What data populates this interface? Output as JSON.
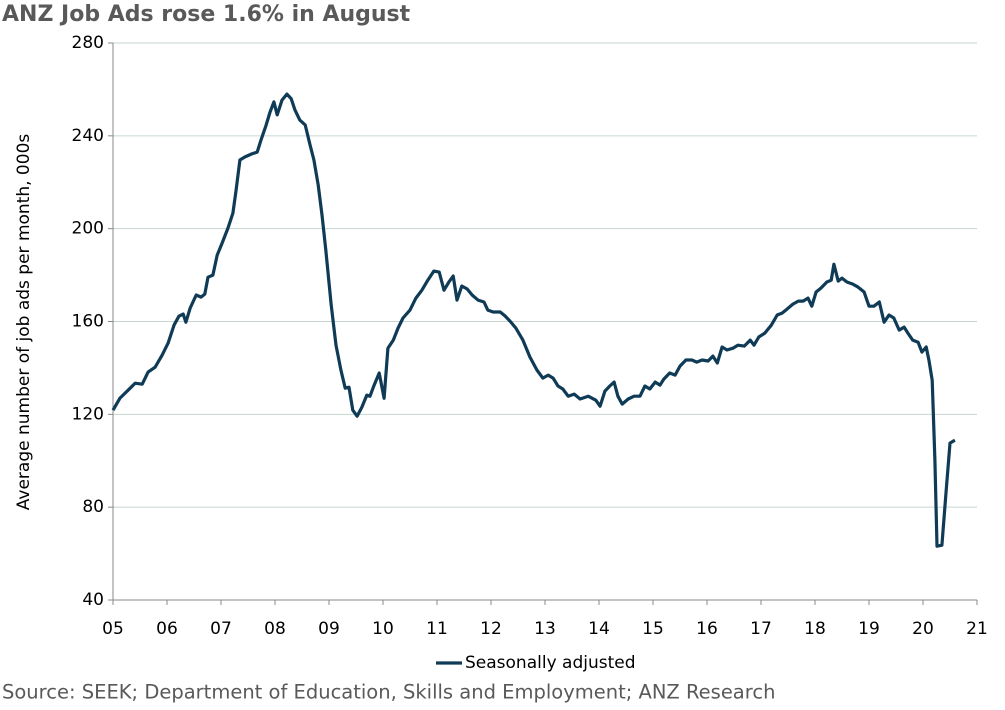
{
  "chart_data": {
    "type": "line",
    "title": "ANZ Job Ads rose 1.6% in August",
    "y_label": "Average number of job ads per month, 000s",
    "source": "Source: SEEK; Department of Education, Skills and Employment; ANZ Research",
    "xlim": [
      2005,
      2021
    ],
    "xticks": [
      {
        "value": 2005,
        "label": "05"
      },
      {
        "value": 2006,
        "label": "06"
      },
      {
        "value": 2007,
        "label": "07"
      },
      {
        "value": 2008,
        "label": "08"
      },
      {
        "value": 2009,
        "label": "09"
      },
      {
        "value": 2010,
        "label": "10"
      },
      {
        "value": 2011,
        "label": "11"
      },
      {
        "value": 2012,
        "label": "12"
      },
      {
        "value": 2013,
        "label": "13"
      },
      {
        "value": 2014,
        "label": "14"
      },
      {
        "value": 2015,
        "label": "15"
      },
      {
        "value": 2016,
        "label": "16"
      },
      {
        "value": 2017,
        "label": "17"
      },
      {
        "value": 2018,
        "label": "18"
      },
      {
        "value": 2019,
        "label": "19"
      },
      {
        "value": 2020,
        "label": "20"
      },
      {
        "value": 2021,
        "label": "21"
      }
    ],
    "ylim": [
      40,
      280
    ],
    "yticks": [
      40,
      80,
      120,
      160,
      200,
      240,
      280
    ],
    "grid": true,
    "legend": "bottom",
    "x": [
      2005.0,
      2005.13,
      2005.28,
      2005.41,
      2005.54,
      2005.65,
      2005.78,
      2005.91,
      2006.02,
      2006.13,
      2006.22,
      2006.3,
      2006.35,
      2006.43,
      2006.54,
      2006.63,
      2006.7,
      2006.76,
      2006.85,
      2006.93,
      2007.02,
      2007.13,
      2007.22,
      2007.28,
      2007.35,
      2007.44,
      2007.57,
      2007.67,
      2007.74,
      2007.83,
      2007.91,
      2007.98,
      2008.04,
      2008.13,
      2008.22,
      2008.3,
      2008.37,
      2008.46,
      2008.56,
      2008.65,
      2008.72,
      2008.8,
      2008.87,
      2008.94,
      2009.04,
      2009.13,
      2009.22,
      2009.3,
      2009.37,
      2009.44,
      2009.52,
      2009.61,
      2009.7,
      2009.76,
      2009.83,
      2009.93,
      2010.02,
      2010.09,
      2010.19,
      2010.28,
      2010.37,
      2010.5,
      2010.61,
      2010.72,
      2010.83,
      2010.94,
      2011.04,
      2011.13,
      2011.22,
      2011.3,
      2011.37,
      2011.46,
      2011.56,
      2011.65,
      2011.76,
      2011.87,
      2011.94,
      2012.04,
      2012.17,
      2012.26,
      2012.35,
      2012.46,
      2012.59,
      2012.72,
      2012.85,
      2012.96,
      2013.06,
      2013.15,
      2013.24,
      2013.33,
      2013.43,
      2013.54,
      2013.65,
      2013.8,
      2013.94,
      2014.02,
      2014.11,
      2014.2,
      2014.28,
      2014.35,
      2014.43,
      2014.54,
      2014.65,
      2014.76,
      2014.85,
      2014.94,
      2015.04,
      2015.13,
      2015.2,
      2015.31,
      2015.41,
      2015.5,
      2015.61,
      2015.72,
      2015.81,
      2015.91,
      2016.02,
      2016.11,
      2016.19,
      2016.28,
      2016.37,
      2016.48,
      2016.57,
      2016.69,
      2016.8,
      2016.87,
      2016.96,
      2017.07,
      2017.19,
      2017.3,
      2017.39,
      2017.48,
      2017.59,
      2017.69,
      2017.78,
      2017.87,
      2017.94,
      2018.02,
      2018.11,
      2018.22,
      2018.3,
      2018.35,
      2018.43,
      2018.5,
      2018.59,
      2018.7,
      2018.8,
      2018.91,
      2019.0,
      2019.09,
      2019.19,
      2019.28,
      2019.37,
      2019.46,
      2019.56,
      2019.65,
      2019.72,
      2019.81,
      2019.91,
      2019.98,
      2020.06,
      2020.11,
      2020.17,
      2020.22,
      2020.26,
      2020.35,
      2020.43,
      2020.5,
      2020.59
    ],
    "series": [
      {
        "name": "Seasonally adjusted",
        "color": "#0f3b56",
        "values": [
          121.8,
          127,
          130.4,
          133.4,
          133,
          138.2,
          140.3,
          145.5,
          150.7,
          158.4,
          162.3,
          163.2,
          159.7,
          165.8,
          171.4,
          170.5,
          171.8,
          179.1,
          180,
          188.6,
          193.8,
          200.3,
          206.7,
          216.6,
          229.6,
          230.9,
          232.2,
          233,
          238.2,
          244.2,
          250.3,
          254.6,
          249,
          255.4,
          258,
          256,
          251.1,
          246.8,
          244.7,
          236,
          229.6,
          218.8,
          205.9,
          190.8,
          167.1,
          149.8,
          139.1,
          131.3,
          131.7,
          121.8,
          119.2,
          123.1,
          128.3,
          127.8,
          132.2,
          137.8,
          126.9,
          148.5,
          152,
          157.2,
          161.5,
          164.9,
          170.1,
          173.5,
          177.8,
          181.7,
          181.3,
          173.5,
          177,
          179.6,
          169.2,
          175.3,
          174,
          171.4,
          169.2,
          168.4,
          164.9,
          164.1,
          164.1,
          162.4,
          160.2,
          157.2,
          152,
          144.7,
          139.1,
          135.6,
          136.9,
          135.6,
          132.2,
          130.9,
          127.8,
          128.7,
          126.6,
          127.8,
          126.1,
          123.5,
          130,
          132.2,
          133.9,
          127.8,
          124.4,
          126.6,
          127.8,
          127.8,
          132.2,
          130.9,
          133.9,
          132.6,
          135.2,
          137.8,
          136.9,
          140.8,
          143.4,
          143.4,
          142.5,
          143.4,
          143,
          145.1,
          142.1,
          149,
          147.7,
          148.5,
          149.8,
          149.4,
          152,
          149.8,
          153.3,
          155,
          158.4,
          162.8,
          163.6,
          165.3,
          167.5,
          168.8,
          168.8,
          170.1,
          166.6,
          172.7,
          174.4,
          177,
          177.8,
          184.7,
          177.4,
          178.7,
          177,
          176.1,
          174.8,
          172.7,
          166.6,
          166.6,
          168.4,
          159.7,
          162.8,
          161.5,
          156.3,
          157.6,
          155,
          152,
          151.1,
          146.8,
          149,
          143.4,
          134.7,
          100.3,
          63.2,
          63.6,
          87.3,
          107.6,
          108.9
        ]
      }
    ]
  }
}
